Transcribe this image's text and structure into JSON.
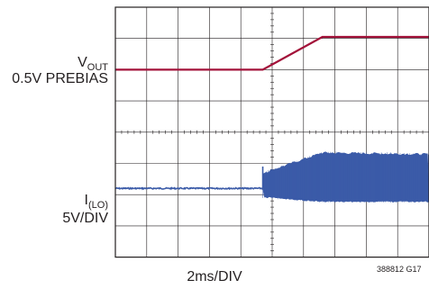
{
  "chart_data": {
    "type": "line",
    "x_div_label": "2ms/DIV",
    "divisions": {
      "x": 10,
      "y": 8
    },
    "channels": [
      {
        "id": "vout",
        "name_main": "V",
        "name_sub": "OUT",
        "scale_label": "0.5V PREBIAS",
        "color": "#a3123a",
        "waveform": "ramp",
        "points_div": [
          [
            0,
            2.0
          ],
          [
            4.7,
            2.0
          ],
          [
            6.6,
            0.95
          ],
          [
            10,
            0.95
          ]
        ]
      },
      {
        "id": "ilo",
        "name_main": "I",
        "name_sub": "(LO)",
        "scale_label": "5V/DIV",
        "color": "#3b5ba8",
        "waveform": "switching",
        "baseline_div": 5.8,
        "switch_start_div": 4.7,
        "envelope_top_div": [
          [
            4.7,
            5.35
          ],
          [
            6.6,
            4.7
          ],
          [
            10,
            4.75
          ]
        ],
        "envelope_bottom_div": [
          [
            4.7,
            6.05
          ],
          [
            6.6,
            6.2
          ],
          [
            10,
            6.2
          ]
        ]
      }
    ]
  },
  "figure_id": "388812 G17"
}
